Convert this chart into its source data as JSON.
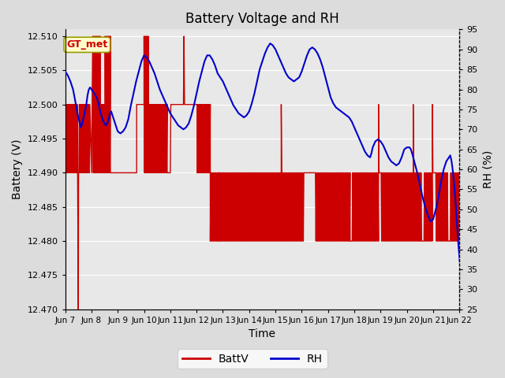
{
  "title": "Battery Voltage and RH",
  "xlabel": "Time",
  "ylabel_left": "Battery (V)",
  "ylabel_right": "RH (%)",
  "annotation": "GT_met",
  "ylim_left": [
    12.47,
    12.511
  ],
  "ylim_right": [
    25,
    95
  ],
  "yticks_left": [
    12.47,
    12.475,
    12.48,
    12.485,
    12.49,
    12.495,
    12.5,
    12.505,
    12.51
  ],
  "yticks_right": [
    25,
    30,
    35,
    40,
    45,
    50,
    55,
    60,
    65,
    70,
    75,
    80,
    85,
    90,
    95
  ],
  "x_tick_labels": [
    "Jun 7",
    "Jun 8",
    "Jun 9",
    "Jun 10",
    "Jun 11",
    "Jun 12",
    "Jun 13",
    "Jun 14",
    "Jun 15",
    "Jun 16",
    "Jun 17",
    "Jun 18",
    "Jun 19",
    "Jun 20",
    "Jun 21",
    "Jun 22"
  ],
  "bg_color": "#dcdcdc",
  "plot_bg_color": "#e8e8e8",
  "battV_color": "#cc0000",
  "rh_color": "#0000cc",
  "legend_battV": "BattV",
  "legend_rh": "RH",
  "x_tick_positions": [
    7,
    8,
    9,
    10,
    11,
    12,
    13,
    14,
    15,
    16,
    17,
    18,
    19,
    20,
    21,
    22
  ],
  "xlim": [
    7,
    22
  ]
}
